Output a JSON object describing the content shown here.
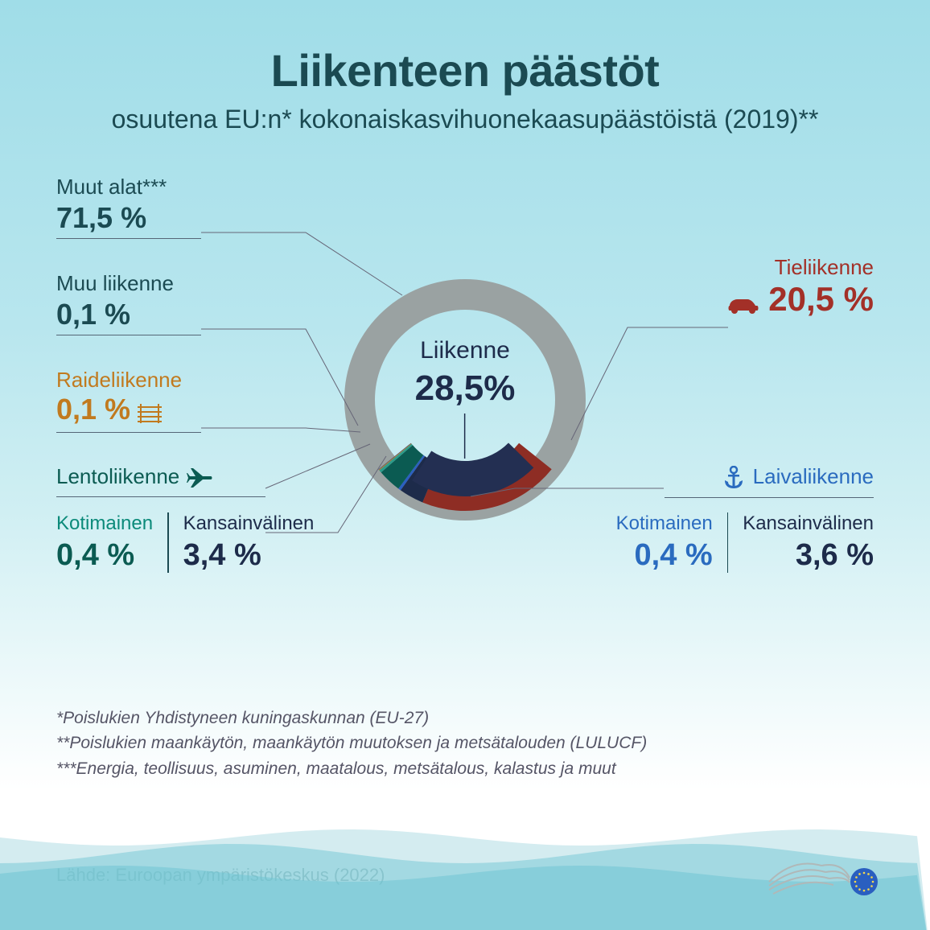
{
  "title": "Liikenteen päästöt",
  "subtitle": "osuutena EU:n* kokonaiskasvihuonekaasupäästöistä (2019)**",
  "center": {
    "label": "Liikenne",
    "value": "28,5%"
  },
  "donut": {
    "radius_outer": 150,
    "radius_inner": 112,
    "radius_arc_outer": 138,
    "radius_arc_inner": 86,
    "bg_color": "#9aa2a2",
    "segments": [
      {
        "id": "other_sectors",
        "pct": 71.5,
        "color": "#9aa2a2"
      },
      {
        "id": "road",
        "pct": 20.5,
        "color": "#8e2d24"
      },
      {
        "id": "ship_intl",
        "pct": 3.6,
        "color": "#1d2b4a"
      },
      {
        "id": "ship_dom",
        "pct": 0.4,
        "color": "#2a5fc0"
      },
      {
        "id": "air_intl",
        "pct": 3.4,
        "color": "#0b5b52"
      },
      {
        "id": "air_dom",
        "pct": 0.4,
        "color": "#2c9b8a"
      },
      {
        "id": "rail",
        "pct": 0.1,
        "color": "#c17a1f"
      },
      {
        "id": "other_trans",
        "pct": 0.1,
        "color": "#556"
      }
    ]
  },
  "labels": {
    "muut_alat": {
      "label": "Muut alat***",
      "value": "71,5 %"
    },
    "muu_liikenne": {
      "label": "Muu liikenne",
      "value": "0,1 %"
    },
    "raideliikenne": {
      "label": "Raideliikenne",
      "value": "0,1 %"
    },
    "lentoliikenne": {
      "label": "Lentoliikenne"
    },
    "tieliikenne": {
      "label": "Tieliikenne",
      "value": "20,5 %"
    },
    "laivaliikenne": {
      "label": "Laivaliikenne"
    }
  },
  "air": {
    "domestic": {
      "label": "Kotimainen",
      "value": "0,4 %",
      "label_color": "#0b8a7a",
      "value_color": "#0b5b52"
    },
    "intl": {
      "label": "Kansainvälinen",
      "value": "3,4 %",
      "label_color": "#1d2b4a",
      "value_color": "#1d2b4a"
    }
  },
  "ship": {
    "domestic": {
      "label": "Kotimainen",
      "value": "0,4 %",
      "label_color": "#2a6bbf",
      "value_color": "#2a6bbf"
    },
    "intl": {
      "label": "Kansainvälinen",
      "value": "3,6 %",
      "label_color": "#1d2b4a",
      "value_color": "#1d2b4a"
    }
  },
  "footnotes": [
    "*Poislukien Yhdistyneen kuningaskunnan (EU-27)",
    "**Poislukien maankäytön, maankäytön muutoksen ja metsätalouden (LULUCF)",
    "***Energia, teollisuus, asuminen, maatalous, metsätalous, kalastus ja muut"
  ],
  "source": "Lähde: Euroopan ympäristökeskus (2022)",
  "wave_colors": {
    "back": "#b8e0e6",
    "mid": "#8fd1db",
    "front": "#6cc3d1"
  },
  "icons": {
    "car_color": "#a33028",
    "rail_color": "#c17a1f",
    "plane_color": "#0b5b52",
    "anchor_color": "#2a6bbf"
  }
}
